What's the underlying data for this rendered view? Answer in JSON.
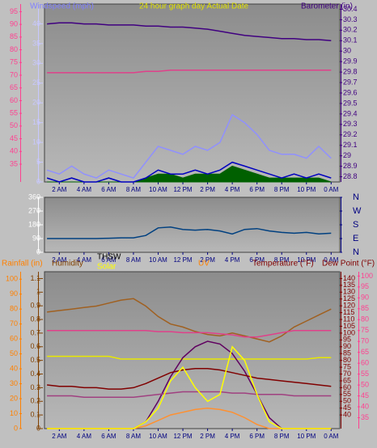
{
  "chart_data": [
    {
      "type": "line",
      "labels": [
        {
          "text": "Windspeed (mph)",
          "color": "#8080ff"
        },
        {
          "text": "24 hour graph day  Actual Date",
          "color": "#e0e000"
        },
        {
          "text": "Barometer (in)",
          "color": "#400080"
        }
      ],
      "x": [
        1,
        2,
        3,
        4,
        5,
        6,
        7,
        8,
        9,
        10,
        11,
        12,
        13,
        14,
        15,
        16,
        17,
        18,
        19,
        20,
        21,
        22,
        23,
        24
      ],
      "xlim": [
        0.8,
        24.7
      ],
      "xticks": [
        {
          "value": 2,
          "label": "2 AM"
        },
        {
          "value": 4,
          "label": "4 AM"
        },
        {
          "value": 6,
          "label": "6 AM"
        },
        {
          "value": 8,
          "label": "8 AM"
        },
        {
          "value": 10,
          "label": "10 AM"
        },
        {
          "value": 12,
          "label": "12 PM"
        },
        {
          "value": 14,
          "label": "2 PM"
        },
        {
          "value": 16,
          "label": "4 PM"
        },
        {
          "value": 18,
          "label": "6 PM"
        },
        {
          "value": 20,
          "label": "8 PM"
        },
        {
          "value": 22,
          "label": "10 PM"
        },
        {
          "value": 24,
          "label": "0 AM"
        }
      ],
      "axes": [
        {
          "lim": [
            0,
            45
          ],
          "ticks": [
            0,
            5,
            10,
            15,
            20,
            25,
            30,
            35,
            40
          ],
          "color": "#c8c8ff"
        },
        {
          "lim": [
            28.75,
            30.45
          ],
          "ticks": [
            28.8,
            28.9,
            29,
            29.1,
            29.2,
            29.3,
            29.4,
            29.5,
            29.6,
            29.7,
            29.8,
            29.9,
            30,
            30.1,
            30.2,
            30.3,
            30.4
          ],
          "color": "#400080"
        },
        {
          "lim": [
            28,
            98
          ],
          "ticks": [
            35,
            40,
            45,
            50,
            55,
            60,
            65,
            70,
            75,
            80,
            85,
            90,
            95
          ],
          "color": "#ff4090"
        }
      ],
      "series": [
        {
          "axis": 0,
          "color": "#006000",
          "fill": true,
          "values": [
            0,
            0,
            0,
            0,
            0,
            0,
            0,
            0,
            1,
            2,
            2,
            1,
            2,
            2,
            2,
            4,
            3,
            2,
            1,
            1,
            1,
            1,
            1,
            0
          ]
        },
        {
          "axis": 0,
          "color": "#9090ff",
          "values": [
            3,
            2,
            4,
            2,
            1,
            3,
            2,
            1,
            5,
            9,
            8,
            7,
            9,
            8,
            10,
            17,
            15,
            12,
            8,
            7,
            7,
            6,
            9,
            6
          ]
        },
        {
          "axis": 0,
          "color": "#0000c0",
          "values": [
            1,
            0,
            1,
            0,
            0,
            1,
            0,
            0,
            1,
            3,
            2,
            2,
            3,
            2,
            3,
            5,
            4,
            3,
            2,
            1,
            2,
            1,
            2,
            1
          ]
        },
        {
          "axis": 1,
          "color": "#400080",
          "values": [
            30.26,
            30.27,
            30.27,
            30.26,
            30.26,
            30.25,
            30.25,
            30.25,
            30.24,
            30.24,
            30.23,
            30.23,
            30.22,
            30.21,
            30.19,
            30.17,
            30.15,
            30.14,
            30.13,
            30.12,
            30.12,
            30.11,
            30.11,
            30.1
          ]
        },
        {
          "axis": 2,
          "color": "#e0408a",
          "values": [
            71,
            71,
            71,
            71,
            71,
            71,
            71,
            71,
            71.5,
            71.5,
            72,
            72,
            72,
            72,
            72,
            72,
            72,
            72,
            72,
            72,
            72,
            72,
            72,
            72
          ]
        }
      ]
    },
    {
      "type": "line",
      "labels": [],
      "x": [
        1,
        2,
        3,
        4,
        5,
        6,
        7,
        8,
        9,
        10,
        11,
        12,
        13,
        14,
        15,
        16,
        17,
        18,
        19,
        20,
        21,
        22,
        23,
        24
      ],
      "xlim": [
        0.8,
        24.7
      ],
      "xticks": [
        {
          "value": 2,
          "label": "2 AM"
        },
        {
          "value": 4,
          "label": "4 AM"
        },
        {
          "value": 6,
          "label": "6 AM"
        },
        {
          "value": 8,
          "label": "8 AM"
        },
        {
          "value": 10,
          "label": "10 AM"
        },
        {
          "value": 12,
          "label": "12 PM"
        },
        {
          "value": 14,
          "label": "2 PM"
        },
        {
          "value": 16,
          "label": "4 PM"
        },
        {
          "value": 18,
          "label": "6 PM"
        },
        {
          "value": 20,
          "label": "8 PM"
        },
        {
          "value": 22,
          "label": "10 PM"
        },
        {
          "value": 24,
          "label": "0 AM"
        }
      ],
      "axes": [
        {
          "lim": [
            0,
            360
          ],
          "ticks": [
            0,
            90,
            180,
            270,
            360
          ],
          "color": "#ffffff"
        },
        {
          "lim": [
            0,
            360
          ],
          "ticks": [
            {
              "value": 0,
              "label": "N"
            },
            {
              "value": 90,
              "label": "E"
            },
            {
              "value": 180,
              "label": "S"
            },
            {
              "value": 270,
              "label": "W"
            },
            {
              "value": 360,
              "label": "N"
            }
          ],
          "color": "#000080"
        }
      ],
      "series": [
        {
          "axis": 0,
          "color": "#004080",
          "values": [
            90,
            90,
            90,
            90,
            90,
            92,
            95,
            95,
            110,
            160,
            165,
            150,
            145,
            150,
            140,
            120,
            150,
            155,
            140,
            130,
            125,
            130,
            120,
            125
          ]
        }
      ]
    },
    {
      "type": "line",
      "labels": [
        {
          "text": "Rainfall (in)",
          "color": "#ff8000"
        },
        {
          "text": "Humidity",
          "color": "#804000"
        },
        {
          "text": "THSW",
          "color": "#000000"
        },
        {
          "text": "Solar",
          "color": "#ffff00"
        },
        {
          "text": "UV",
          "color": "#ff8000"
        },
        {
          "text": "Temperature (°F)",
          "color": "#800000"
        },
        {
          "text": "Dew Point (°F)",
          "color": "#800000"
        }
      ],
      "x": [
        1,
        2,
        3,
        4,
        5,
        6,
        7,
        8,
        9,
        10,
        11,
        12,
        13,
        14,
        15,
        16,
        17,
        18,
        19,
        20,
        21,
        22,
        23,
        24
      ],
      "xlim": [
        0.8,
        24.7
      ],
      "xticks": [
        {
          "value": 2,
          "label": "2 AM"
        },
        {
          "value": 4,
          "label": "4 AM"
        },
        {
          "value": 6,
          "label": "6 AM"
        },
        {
          "value": 8,
          "label": "8 AM"
        },
        {
          "value": 10,
          "label": "10 AM"
        },
        {
          "value": 12,
          "label": "12 PM"
        },
        {
          "value": 14,
          "label": "2 PM"
        },
        {
          "value": 16,
          "label": "4 PM"
        },
        {
          "value": 18,
          "label": "6 PM"
        },
        {
          "value": 20,
          "label": "8 PM"
        },
        {
          "value": 22,
          "label": "10 PM"
        },
        {
          "value": 24,
          "label": "0 AM"
        }
      ],
      "axes": [
        {
          "lim": [
            0,
            1.15
          ],
          "ticks": [
            0,
            0.1,
            0.2,
            0.3,
            0.4,
            0.5,
            0.6,
            0.7,
            0.8,
            0.9,
            1,
            1.1
          ],
          "color": "#804000"
        },
        {
          "lim": [
            0,
            105
          ],
          "ticks": [
            0,
            10,
            20,
            30,
            40,
            50,
            60,
            70,
            80,
            90,
            100
          ],
          "color": "#ff8000"
        },
        {
          "lim": [
            30,
            145
          ],
          "ticks": [
            40,
            45,
            50,
            55,
            60,
            65,
            70,
            75,
            80,
            85,
            90,
            95,
            100,
            105,
            110,
            115,
            120,
            125,
            130,
            135,
            140
          ],
          "color": "#800000"
        },
        {
          "lim": [
            30,
            102
          ],
          "ticks": [
            35,
            40,
            45,
            50,
            55,
            60,
            65,
            70,
            75,
            80,
            85,
            90,
            95,
            100
          ],
          "color": "#ff4090"
        }
      ],
      "series": [
        {
          "axis": 1,
          "color": "#a06020",
          "values": [
            78,
            79,
            80,
            81,
            82,
            84,
            86,
            87,
            82,
            75,
            70,
            68,
            65,
            63,
            62,
            64,
            62,
            60,
            58,
            62,
            68,
            72,
            76,
            80
          ]
        },
        {
          "axis": 3,
          "color": "#e0408a",
          "values": [
            75,
            75,
            75,
            75,
            75,
            75,
            75,
            75,
            75,
            74.5,
            74.5,
            74,
            74,
            74,
            73.5,
            73,
            72,
            72,
            73,
            74,
            75,
            75,
            75,
            75
          ]
        },
        {
          "axis": 2,
          "color": "#e8e800",
          "values": [
            83,
            83,
            83,
            83,
            83,
            83,
            81,
            81,
            81,
            81,
            81,
            81,
            81,
            81,
            81,
            81,
            81,
            81,
            81,
            81,
            81,
            81,
            82,
            82
          ]
        },
        {
          "axis": 0,
          "color": "#600060",
          "values": [
            0,
            0,
            0,
            0,
            0,
            0,
            0,
            0,
            0.05,
            0.2,
            0.38,
            0.52,
            0.6,
            0.64,
            0.62,
            0.55,
            0.42,
            0.25,
            0.08,
            0,
            0,
            0,
            0,
            0
          ]
        },
        {
          "axis": 2,
          "color": "#800000",
          "values": [
            62,
            61,
            61,
            60,
            60,
            59,
            59,
            60,
            63,
            67,
            71,
            73,
            74,
            74,
            73,
            71,
            69,
            67,
            66,
            65,
            64,
            63,
            62,
            61
          ]
        },
        {
          "axis": 2,
          "color": "#a04080",
          "values": [
            54,
            54,
            54,
            53,
            53,
            53,
            53,
            53,
            54,
            55,
            56,
            57,
            57,
            57,
            57,
            56,
            56,
            55,
            55,
            55,
            54,
            54,
            54,
            54
          ]
        },
        {
          "axis": 0,
          "color": "#ff9030",
          "values": [
            0,
            0,
            0,
            0,
            0,
            0,
            0,
            0,
            0.02,
            0.06,
            0.1,
            0.12,
            0.14,
            0.15,
            0.14,
            0.12,
            0.08,
            0.03,
            0,
            0,
            0,
            0,
            0,
            0
          ]
        },
        {
          "axis": 0,
          "color": "#ffff00",
          "values": [
            0,
            0,
            0,
            0,
            0,
            0,
            0,
            0,
            0.05,
            0.15,
            0.35,
            0.45,
            0.3,
            0.2,
            0.25,
            0.6,
            0.5,
            0.25,
            0.05,
            0,
            0,
            0,
            0,
            0
          ]
        }
      ]
    }
  ]
}
